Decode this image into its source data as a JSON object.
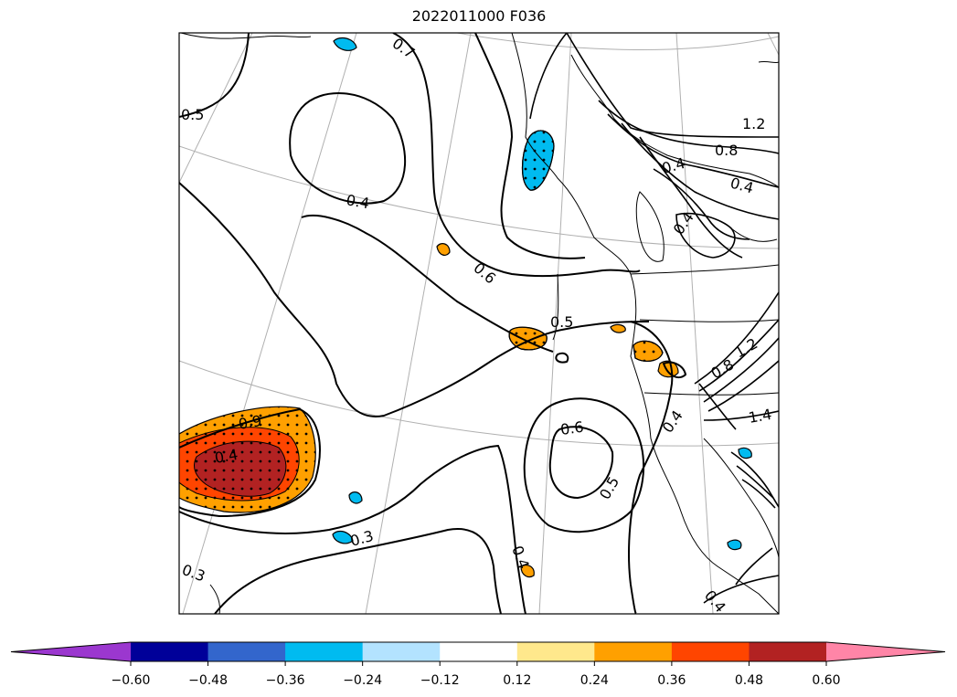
{
  "title": "2022011000 F036",
  "contour_labels": [
    "0.7",
    "0.5",
    "0.4",
    "0.6",
    "0.5",
    "0.6",
    "0.5",
    "0.4",
    "0.3",
    "0.3",
    "0.4",
    "0.4",
    "0.9",
    "0.4",
    "1.2",
    "0.8",
    "0.4",
    "0.4",
    "1.2",
    "1.4",
    "0.4",
    "0.8"
  ],
  "colorbar": {
    "ticks": [
      "−0.60",
      "−0.48",
      "−0.36",
      "−0.24",
      "−0.12",
      "0.12",
      "0.24",
      "0.36",
      "0.48",
      "0.60"
    ],
    "colors": {
      "under": "#9b37cf",
      "bins": [
        "#000099",
        "#3366cc",
        "#00bbf0",
        "#b3e3ff",
        "#ffffff",
        "#ffe88c",
        "#ffa000",
        "#ff4500",
        "#b22222"
      ],
      "over": "#ff85a7"
    }
  }
}
